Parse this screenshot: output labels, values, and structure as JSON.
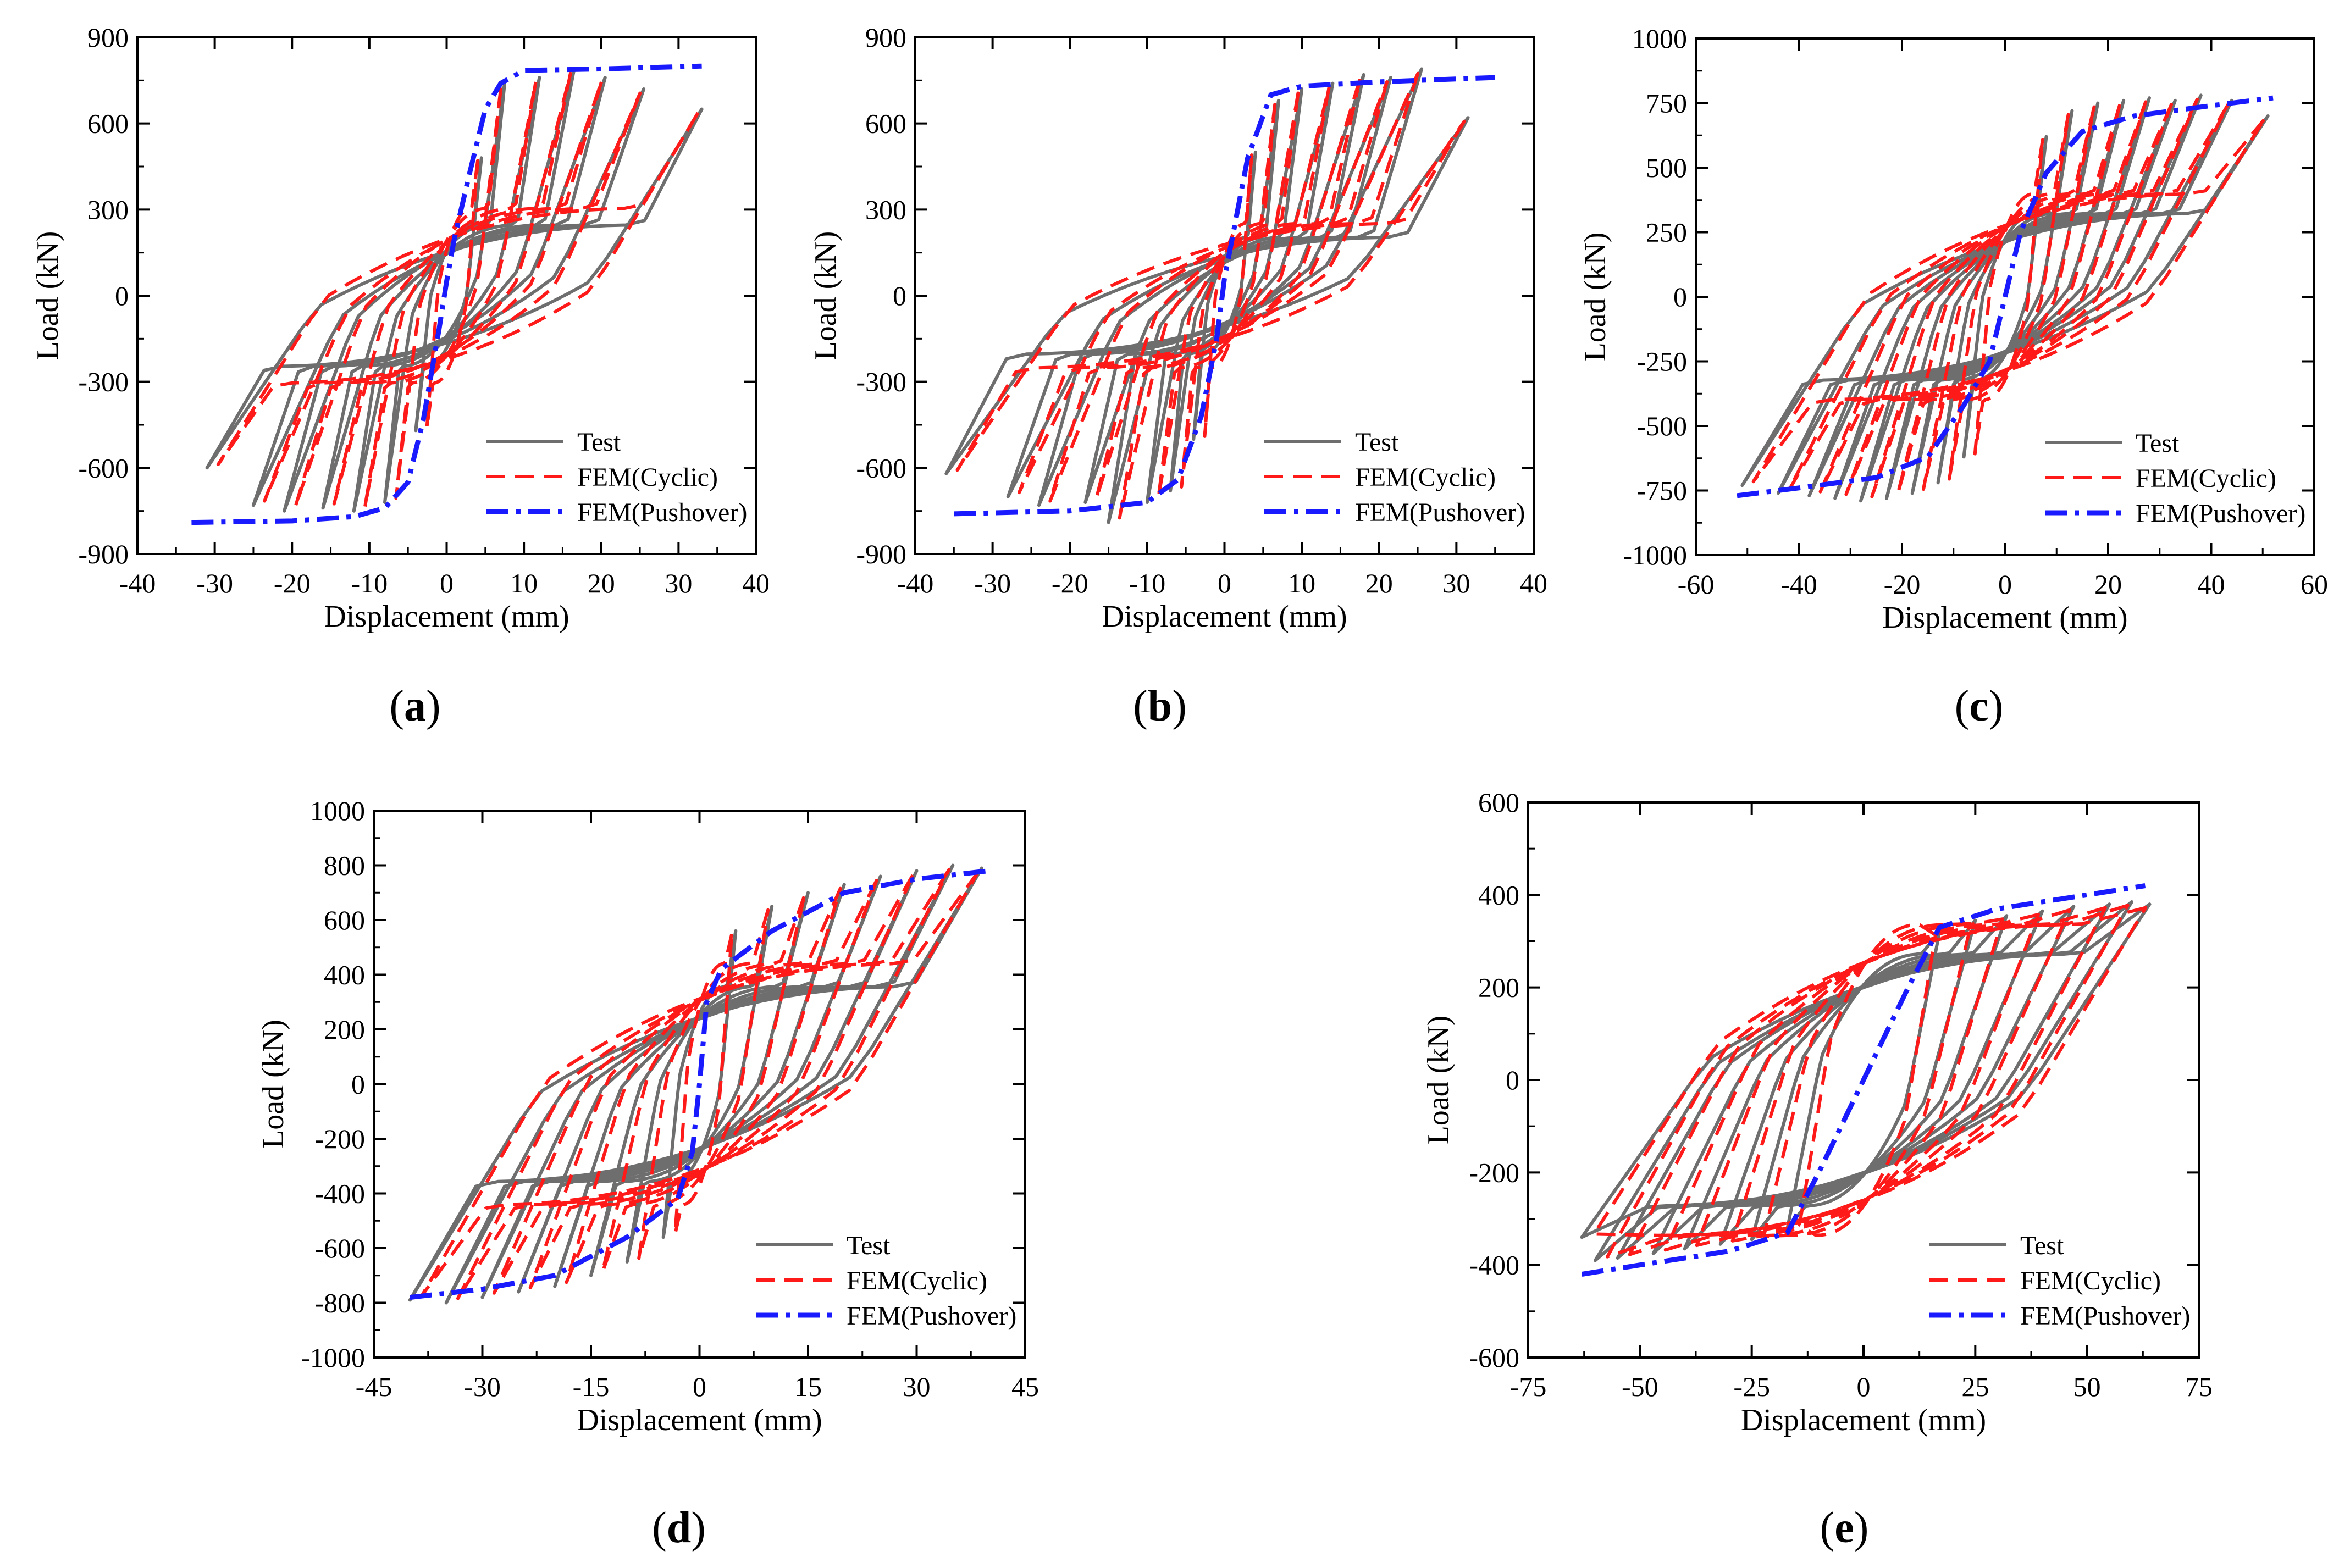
{
  "figure": {
    "captions": [
      "a",
      "b",
      "c",
      "d",
      "e"
    ],
    "colors": {
      "test": "#6e6e6e",
      "cyclic": "#ff1a1a",
      "pushover": "#1a1aff",
      "axis": "#000000",
      "plot_bg": "#ffffff"
    }
  },
  "chart_data": [
    {
      "id": "a",
      "type": "line",
      "xlabel": "Displacement (mm)",
      "ylabel": "Load (kN)",
      "xlim": [
        -40,
        40
      ],
      "ylim": [
        -900,
        900
      ],
      "xticks": [
        -40,
        -30,
        -20,
        -10,
        0,
        10,
        20,
        30,
        40
      ],
      "yticks": [
        -900,
        -600,
        -300,
        0,
        300,
        600,
        900
      ],
      "legend": [
        "Test",
        "FEM(Cyclic)",
        "FEM(Pushover)"
      ],
      "legend_position": "bottom-right",
      "hysteresis": {
        "pos_peaks": [
          [
            4.5,
            480
          ],
          [
            7.5,
            740
          ],
          [
            12,
            760
          ],
          [
            16.5,
            790
          ],
          [
            20.5,
            760
          ],
          [
            25.5,
            720
          ],
          [
            33,
            650
          ]
        ],
        "neg_peaks": [
          [
            -4,
            -470
          ],
          [
            -8,
            -720
          ],
          [
            -12,
            -750
          ],
          [
            -16,
            -740
          ],
          [
            -21,
            -750
          ],
          [
            -25,
            -730
          ],
          [
            -31,
            -600
          ]
        ],
        "neg_intercept": 290,
        "pos_intercept": -290,
        "bulge": 150
      },
      "pushover": {
        "x": [
          -33,
          -20,
          -12,
          -8,
          -5,
          -3,
          -1,
          0,
          1,
          3,
          5,
          7,
          10,
          20,
          33
        ],
        "y": [
          -790,
          -785,
          -770,
          -740,
          -650,
          -430,
          -120,
          50,
          200,
          430,
          650,
          740,
          785,
          790,
          800
        ]
      }
    },
    {
      "id": "b",
      "type": "line",
      "xlabel": "Displacement (mm)",
      "ylabel": "Load (kN)",
      "xlim": [
        -40,
        40
      ],
      "ylim": [
        -900,
        900
      ],
      "xticks": [
        -40,
        -30,
        -20,
        -10,
        0,
        10,
        20,
        30,
        40
      ],
      "yticks": [
        -900,
        -600,
        -300,
        0,
        300,
        600,
        900
      ],
      "legend": [
        "Test",
        "FEM(Cyclic)",
        "FEM(Pushover)"
      ],
      "legend_position": "bottom-right",
      "hysteresis": {
        "pos_peaks": [
          [
            4,
            500
          ],
          [
            7,
            680
          ],
          [
            10,
            720
          ],
          [
            14,
            740
          ],
          [
            18,
            770
          ],
          [
            21.5,
            760
          ],
          [
            25.5,
            790
          ],
          [
            31.5,
            620
          ]
        ],
        "neg_peaks": [
          [
            -4,
            -500
          ],
          [
            -7,
            -680
          ],
          [
            -10,
            -720
          ],
          [
            -15,
            -790
          ],
          [
            -18,
            -720
          ],
          [
            -24,
            -730
          ],
          [
            -28,
            -700
          ],
          [
            -36,
            -620
          ]
        ],
        "neg_intercept": 240,
        "pos_intercept": -240,
        "bulge": 160
      },
      "pushover": {
        "x": [
          -35,
          -20,
          -10,
          -6,
          -3,
          -1,
          0,
          1,
          3,
          6,
          10,
          20,
          35
        ],
        "y": [
          -760,
          -750,
          -720,
          -640,
          -420,
          -150,
          60,
          200,
          480,
          700,
          730,
          745,
          760
        ]
      }
    },
    {
      "id": "c",
      "type": "line",
      "xlabel": "Displacement (mm)",
      "ylabel": "Load (kN)",
      "xlim": [
        -60,
        60
      ],
      "ylim": [
        -1000,
        1000
      ],
      "xticks": [
        -60,
        -40,
        -20,
        0,
        20,
        40,
        60
      ],
      "yticks": [
        -1000,
        -750,
        -500,
        -250,
        0,
        250,
        500,
        750,
        1000
      ],
      "legend": [
        "Test",
        "FEM(Cyclic)",
        "FEM(Pushover)"
      ],
      "legend_position": "bottom-right",
      "hysteresis": {
        "pos_peaks": [
          [
            8,
            620
          ],
          [
            13,
            720
          ],
          [
            18,
            750
          ],
          [
            23,
            760
          ],
          [
            28,
            770
          ],
          [
            33,
            760
          ],
          [
            38,
            780
          ],
          [
            44,
            760
          ],
          [
            51,
            700
          ]
        ],
        "neg_peaks": [
          [
            -8,
            -620
          ],
          [
            -13,
            -720
          ],
          [
            -18,
            -760
          ],
          [
            -23,
            -780
          ],
          [
            -28,
            -790
          ],
          [
            -33,
            -780
          ],
          [
            -38,
            -770
          ],
          [
            -44,
            -760
          ],
          [
            -51,
            -730
          ]
        ],
        "neg_intercept": 380,
        "pos_intercept": -380,
        "bulge": 170
      },
      "pushover": {
        "x": [
          -52,
          -40,
          -25,
          -15,
          -8,
          -3,
          0,
          3,
          8,
          15,
          25,
          40,
          52
        ],
        "y": [
          -770,
          -740,
          -700,
          -620,
          -420,
          -250,
          0,
          250,
          480,
          640,
          700,
          740,
          770
        ]
      }
    },
    {
      "id": "d",
      "type": "line",
      "xlabel": "Displacement (mm)",
      "ylabel": "Load (kN)",
      "xlim": [
        -45,
        45
      ],
      "ylim": [
        -1000,
        1000
      ],
      "xticks": [
        -45,
        -30,
        -15,
        0,
        15,
        30,
        45
      ],
      "yticks": [
        -1000,
        -800,
        -600,
        -400,
        -200,
        0,
        200,
        400,
        600,
        800,
        1000
      ],
      "legend": [
        "Test",
        "FEM(Cyclic)",
        "FEM(Pushover)"
      ],
      "legend_position": "bottom-right",
      "hysteresis": {
        "pos_peaks": [
          [
            5,
            560
          ],
          [
            10,
            650
          ],
          [
            15,
            700
          ],
          [
            20,
            730
          ],
          [
            25,
            760
          ],
          [
            30,
            780
          ],
          [
            35,
            800
          ],
          [
            39,
            790
          ]
        ],
        "neg_peaks": [
          [
            -5,
            -560
          ],
          [
            -10,
            -650
          ],
          [
            -15,
            -700
          ],
          [
            -20,
            -740
          ],
          [
            -25,
            -760
          ],
          [
            -30,
            -780
          ],
          [
            -35,
            -800
          ],
          [
            -40,
            -790
          ]
        ],
        "neg_intercept": 420,
        "pos_intercept": -420,
        "bulge": 180
      },
      "pushover": {
        "x": [
          -40,
          -30,
          -20,
          -10,
          -3,
          -1,
          0,
          1,
          3,
          10,
          20,
          30,
          40
        ],
        "y": [
          -780,
          -750,
          -700,
          -560,
          -420,
          -250,
          0,
          300,
          420,
          560,
          700,
          750,
          780
        ]
      }
    },
    {
      "id": "e",
      "type": "line",
      "xlabel": "Displacement (mm)",
      "ylabel": "Load (kN)",
      "xlim": [
        -75,
        75
      ],
      "ylim": [
        -600,
        600
      ],
      "xticks": [
        -75,
        -50,
        -25,
        0,
        25,
        50,
        75
      ],
      "yticks": [
        -600,
        -400,
        -200,
        0,
        200,
        400,
        600
      ],
      "legend": [
        "Test",
        "FEM(Cyclic)",
        "FEM(Pushover)"
      ],
      "legend_position": "bottom-right",
      "hysteresis": {
        "pos_peaks": [
          [
            17,
            320
          ],
          [
            25,
            345
          ],
          [
            32,
            355
          ],
          [
            40,
            365
          ],
          [
            47,
            375
          ],
          [
            55,
            380
          ],
          [
            60,
            385
          ],
          [
            64,
            380
          ]
        ],
        "neg_peaks": [
          [
            -17,
            -320
          ],
          [
            -25,
            -345
          ],
          [
            -32,
            -355
          ],
          [
            -40,
            -365
          ],
          [
            -47,
            -375
          ],
          [
            -55,
            -385
          ],
          [
            -60,
            -390
          ],
          [
            -63,
            -340
          ]
        ],
        "neg_intercept": 320,
        "pos_intercept": -320,
        "bulge": 90
      },
      "pushover": {
        "x": [
          -63,
          -50,
          -30,
          -17,
          -10,
          0,
          10,
          17,
          30,
          50,
          63
        ],
        "y": [
          -420,
          -400,
          -370,
          -330,
          -200,
          0,
          200,
          330,
          370,
          400,
          420
        ]
      }
    }
  ]
}
